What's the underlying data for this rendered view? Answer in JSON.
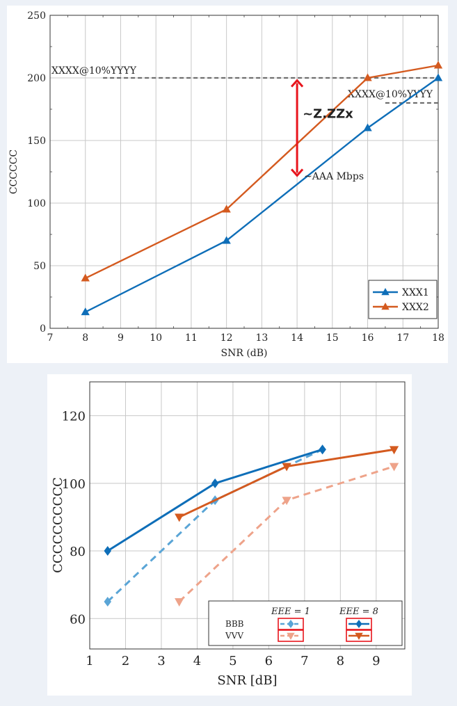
{
  "colors": {
    "blue": "#0e6eb8",
    "orange": "#d45a1f",
    "light_blue": "#5aa5d6",
    "light_orange": "#eea38a",
    "annotation_red": "#e8141c",
    "dashed_gray": "#6f6f6f",
    "grid": "#c8c8c8"
  },
  "chart_data": [
    {
      "type": "line",
      "xlabel": "SNR (dB)",
      "ylabel": "CCCCCC",
      "xlim": [
        7,
        18
      ],
      "ylim": [
        0,
        250
      ],
      "xticks": [
        7,
        8,
        9,
        10,
        11,
        12,
        13,
        14,
        15,
        16,
        17,
        18
      ],
      "yticks": [
        0,
        50,
        100,
        150,
        200,
        250
      ],
      "series": [
        {
          "name": "XXX1",
          "color": "#0e6eb8",
          "marker": "triangle-up",
          "x": [
            8,
            12,
            16,
            18
          ],
          "y": [
            13,
            70,
            160,
            200
          ]
        },
        {
          "name": "XXX2",
          "color": "#d45a1f",
          "marker": "triangle-up",
          "x": [
            8,
            12,
            16,
            18
          ],
          "y": [
            40,
            95,
            200,
            210
          ]
        }
      ],
      "reference_lines": [
        {
          "label": "XXXX@10%YYYY",
          "y": 200,
          "x_from": 8.5,
          "x_to": 18
        },
        {
          "label": "XXXX@10%YYYY",
          "y": 180,
          "x_from": 16.5,
          "x_to": 18
        }
      ],
      "annotations": {
        "gain_arrow": {
          "x": 14,
          "y_from": 122,
          "y_to": 198
        },
        "gain_label": "~Z.ZZx",
        "rate_label": "~AAA Mbps"
      },
      "legend": {
        "position": "bottom-right",
        "entries": [
          "XXX1",
          "XXX2"
        ]
      }
    },
    {
      "type": "line",
      "xlabel": "SNR [dB]",
      "ylabel": "CCCCCCCCCC",
      "xlim": [
        1,
        9.8
      ],
      "ylim": [
        51,
        130
      ],
      "xticks": [
        1,
        2,
        3,
        4,
        5,
        6,
        7,
        8,
        9
      ],
      "yticks": [
        60,
        80,
        100,
        120
      ],
      "series": [
        {
          "name": "BBB, EEE = 1",
          "color": "#5aa5d6",
          "style": "dashed",
          "marker": "diamond",
          "x": [
            1.5,
            4.5,
            7.5
          ],
          "y": [
            65,
            95,
            110
          ]
        },
        {
          "name": "BBB, EEE = 8",
          "color": "#0e6eb8",
          "style": "solid",
          "marker": "diamond",
          "x": [
            1.5,
            4.5,
            7.5
          ],
          "y": [
            80,
            100,
            110
          ]
        },
        {
          "name": "VVV, EEE = 1",
          "color": "#eea38a",
          "style": "dashed",
          "marker": "triangle-down",
          "x": [
            3.5,
            6.5,
            9.5
          ],
          "y": [
            65,
            95,
            105
          ]
        },
        {
          "name": "VVV, EEE = 8",
          "color": "#d45a1f",
          "style": "solid",
          "marker": "triangle-down",
          "x": [
            3.5,
            6.5,
            9.5
          ],
          "y": [
            90,
            105,
            110
          ]
        }
      ],
      "legend": {
        "position": "bottom-right",
        "column_headers": [
          "EEE = 1",
          "EEE = 8"
        ],
        "row_labels": [
          "BBB",
          "VVV"
        ]
      }
    }
  ]
}
